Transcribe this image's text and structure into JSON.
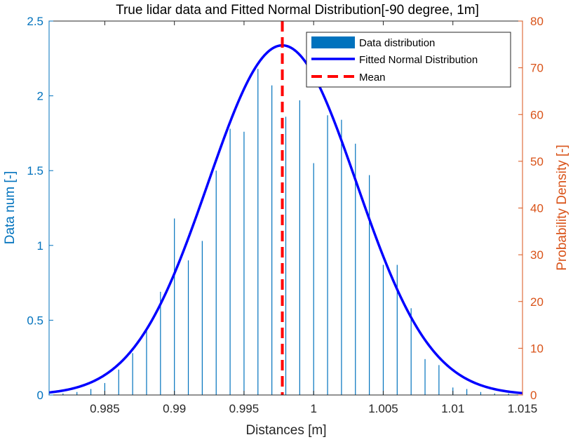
{
  "chart_data": {
    "type": "bar+line",
    "title": "True lidar data and Fitted Normal Distribution[-90 degree, 1m]",
    "xlabel": "Distances [m]",
    "ylabel_left": "Data num [-]",
    "ylabel_right": "Probability Density [-]",
    "xlim": [
      0.981,
      1.015
    ],
    "ylim_left": [
      0,
      2.5
    ],
    "ylim_right": [
      0,
      80
    ],
    "x_ticks": [
      0.985,
      0.99,
      0.995,
      1,
      1.005,
      1.01,
      1.015
    ],
    "x_tick_labels": [
      "0.985",
      "0.99",
      "0.995",
      "1",
      "1.005",
      "1.01",
      "1.015"
    ],
    "y_left_ticks": [
      0,
      0.5,
      1,
      1.5,
      2,
      2.5
    ],
    "y_left_tick_labels": [
      "0",
      "0.5",
      "1",
      "1.5",
      "2",
      "2.5"
    ],
    "y_right_ticks": [
      0,
      10,
      20,
      30,
      40,
      50,
      60,
      70,
      80
    ],
    "y_right_tick_labels": [
      "0",
      "10",
      "20",
      "30",
      "40",
      "50",
      "60",
      "70",
      "80"
    ],
    "bars": {
      "name": "Data distribution",
      "axis": "left",
      "x": [
        0.981,
        0.982,
        0.983,
        0.984,
        0.985,
        0.986,
        0.987,
        0.988,
        0.989,
        0.99,
        0.991,
        0.992,
        0.993,
        0.994,
        0.995,
        0.996,
        0.997,
        0.998,
        0.999,
        1.0,
        1.001,
        1.002,
        1.003,
        1.004,
        1.005,
        1.006,
        1.007,
        1.008,
        1.009,
        1.01,
        1.011,
        1.012,
        1.013,
        1.014
      ],
      "values": [
        0.01,
        0.01,
        0.02,
        0.04,
        0.08,
        0.17,
        0.28,
        0.43,
        0.69,
        1.18,
        0.9,
        1.03,
        1.5,
        1.78,
        1.76,
        2.18,
        2.07,
        1.86,
        1.97,
        1.55,
        1.87,
        1.84,
        1.68,
        1.47,
        0.87,
        0.87,
        0.58,
        0.24,
        0.2,
        0.05,
        0.04,
        0.02,
        0.01,
        0.01
      ]
    },
    "fit": {
      "name": "Fitted Normal Distribution",
      "axis": "right",
      "mean": 0.99775,
      "std": 0.00533,
      "peak": 74.8
    },
    "mean_line": {
      "name": "Mean",
      "x": 0.99775
    },
    "legend_position": "top-right",
    "colors": {
      "bar": "#0072bd",
      "fit": "#0000ff",
      "mean": "#ff0000",
      "left_axis": "#0072bd",
      "right_axis": "#d95319"
    }
  }
}
